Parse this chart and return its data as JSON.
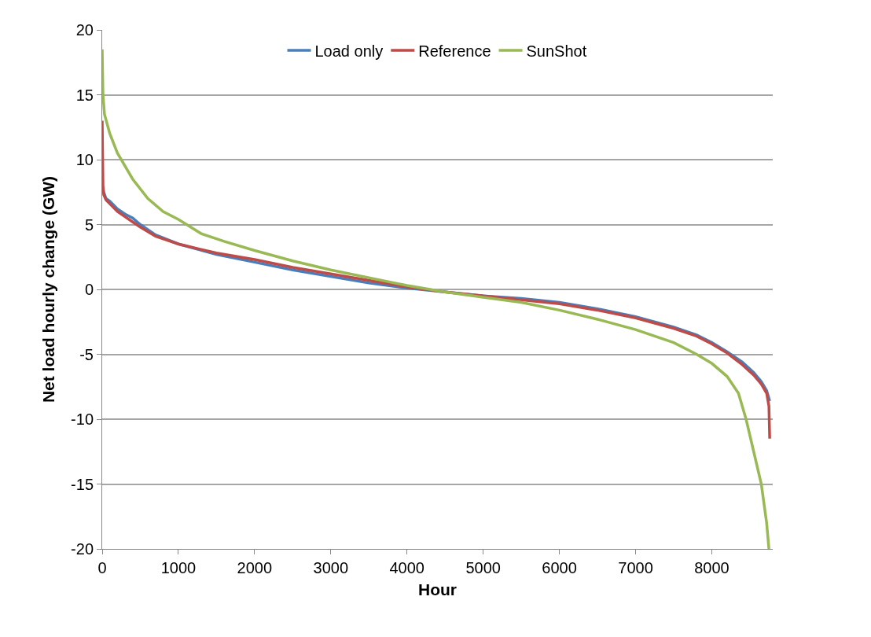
{
  "chart_data": {
    "type": "line",
    "xlabel": "Hour",
    "ylabel": "Net load hourly change (GW)",
    "xlim": [
      0,
      8800
    ],
    "xticks": [
      0,
      1000,
      2000,
      3000,
      4000,
      5000,
      6000,
      7000,
      8000
    ],
    "ylim": [
      -20,
      20
    ],
    "yticks": [
      -20,
      -15,
      -10,
      -5,
      0,
      5,
      10,
      15,
      20
    ],
    "grid": "y",
    "legend": "top",
    "marker": "none",
    "line_style": "solid",
    "series": [
      {
        "name": "Load only",
        "color": "#4a7ebb",
        "x": [
          0,
          20,
          50,
          100,
          200,
          300,
          400,
          500,
          700,
          1000,
          1500,
          2000,
          2500,
          3000,
          3500,
          4000,
          4500,
          5000,
          5500,
          6000,
          6500,
          7000,
          7500,
          7800,
          8000,
          8200,
          8400,
          8550,
          8650,
          8720,
          8750,
          8760
        ],
        "values": [
          8,
          7.5,
          7,
          6.8,
          6.2,
          5.8,
          5.5,
          5,
          4.2,
          3.5,
          2.7,
          2.1,
          1.5,
          1,
          0.5,
          0.1,
          -0.2,
          -0.5,
          -0.7,
          -1,
          -1.5,
          -2.1,
          -2.9,
          -3.5,
          -4.1,
          -4.8,
          -5.6,
          -6.4,
          -7.1,
          -7.8,
          -8.4,
          -8.6
        ]
      },
      {
        "name": "Reference",
        "color": "#be4b48",
        "x": [
          0,
          10,
          20,
          50,
          100,
          200,
          300,
          400,
          500,
          700,
          1000,
          1500,
          2000,
          2500,
          3000,
          3500,
          4000,
          4500,
          5000,
          5500,
          6000,
          6500,
          7000,
          7500,
          7800,
          8000,
          8200,
          8400,
          8550,
          8650,
          8720,
          8750,
          8760
        ],
        "values": [
          13,
          8,
          7.3,
          6.9,
          6.6,
          6,
          5.6,
          5.2,
          4.8,
          4.1,
          3.5,
          2.8,
          2.3,
          1.7,
          1.2,
          0.7,
          0.2,
          -0.2,
          -0.5,
          -0.8,
          -1.1,
          -1.6,
          -2.2,
          -3,
          -3.6,
          -4.2,
          -4.9,
          -5.8,
          -6.6,
          -7.3,
          -8,
          -9,
          -11.5
        ]
      },
      {
        "name": "SunShot",
        "color": "#98b954",
        "x": [
          0,
          10,
          30,
          100,
          200,
          400,
          600,
          800,
          1000,
          1300,
          1600,
          2000,
          2500,
          3000,
          3500,
          4000,
          4500,
          5000,
          5500,
          6000,
          6500,
          7000,
          7500,
          7800,
          8000,
          8200,
          8350,
          8450,
          8550,
          8650,
          8720,
          8750
        ],
        "values": [
          18.5,
          15,
          13.5,
          12,
          10.5,
          8.5,
          7,
          6,
          5.4,
          4.3,
          3.7,
          3,
          2.2,
          1.5,
          0.9,
          0.3,
          -0.2,
          -0.6,
          -1,
          -1.6,
          -2.3,
          -3.1,
          -4.1,
          -5,
          -5.7,
          -6.7,
          -8,
          -10,
          -12.5,
          -15,
          -18,
          -20
        ]
      }
    ]
  }
}
